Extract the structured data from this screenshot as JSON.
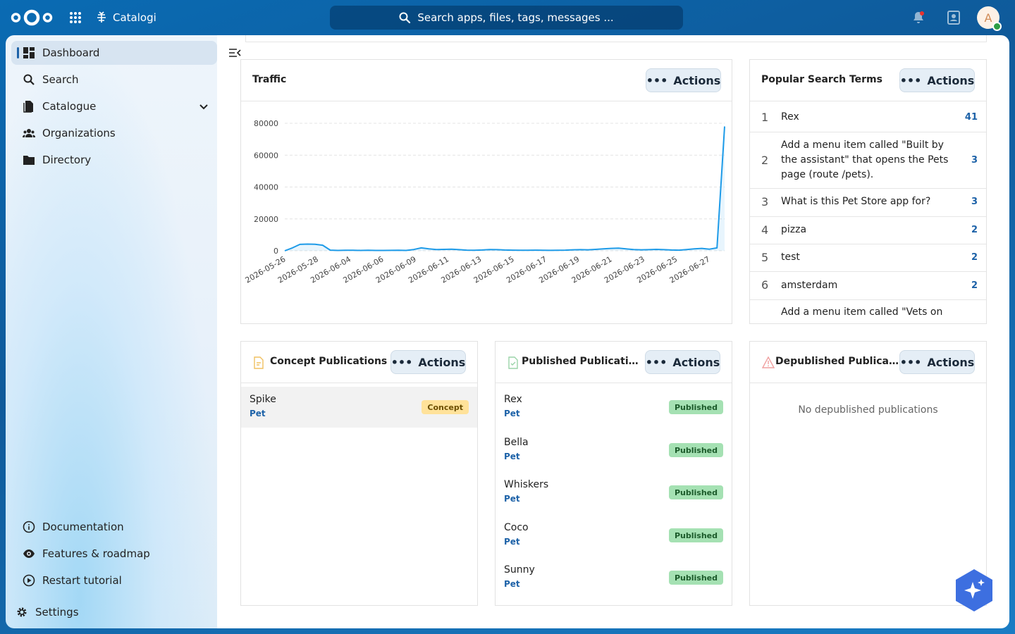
{
  "header": {
    "app_name": "Catalogi",
    "search_placeholder": "Search apps, files, tags, messages ...",
    "avatar_initial": "A"
  },
  "sidebar": {
    "items": [
      {
        "label": "Dashboard",
        "icon": "dashboard-icon"
      },
      {
        "label": "Search",
        "icon": "search-icon"
      },
      {
        "label": "Catalogue",
        "icon": "file-icon"
      },
      {
        "label": "Organizations",
        "icon": "people-icon"
      },
      {
        "label": "Directory",
        "icon": "folder-icon"
      }
    ],
    "bottom_items": [
      {
        "label": "Documentation",
        "icon": "info-icon"
      },
      {
        "label": "Features & roadmap",
        "icon": "eye-icon"
      },
      {
        "label": "Restart tutorial",
        "icon": "play-icon"
      }
    ],
    "settings_label": "Settings"
  },
  "traffic": {
    "title": "Traffic",
    "actions_label": "Actions"
  },
  "chart_data": {
    "type": "area",
    "title": "Traffic",
    "xlabel": "",
    "ylabel": "",
    "ylim": [
      0,
      80000
    ],
    "yticks": [
      0,
      20000,
      40000,
      60000,
      80000
    ],
    "xtick_labels": [
      "2026-05-26",
      "2026-05-28",
      "2026-06-04",
      "2026-06-06",
      "2026-06-09",
      "2026-06-11",
      "2026-06-13",
      "2026-06-15",
      "2026-06-17",
      "2026-06-19",
      "2026-06-21",
      "2026-06-23",
      "2026-06-25",
      "2026-06-27"
    ],
    "x": [
      0,
      1,
      2,
      3,
      4,
      5,
      6,
      7,
      8,
      9,
      10,
      11,
      12,
      13,
      14,
      15,
      16,
      17,
      18,
      19,
      20,
      21,
      22,
      23,
      24,
      25,
      26,
      27,
      28,
      29,
      30,
      31,
      32,
      33,
      34,
      35,
      36,
      37,
      38,
      39,
      40,
      41,
      42,
      43,
      44,
      45,
      46,
      47,
      48,
      49,
      50,
      51,
      52,
      53,
      54,
      55,
      56,
      57,
      58
    ],
    "values": [
      0,
      1800,
      4000,
      4200,
      4100,
      3500,
      400,
      200,
      300,
      300,
      200,
      300,
      200,
      200,
      250,
      300,
      200,
      800,
      1800,
      1200,
      800,
      900,
      1000,
      700,
      400,
      300,
      500,
      800,
      700,
      500,
      400,
      300,
      300,
      400,
      300,
      250,
      300,
      400,
      600,
      700,
      600,
      900,
      1200,
      1500,
      1700,
      1200,
      800,
      600,
      700,
      900,
      700,
      500,
      400,
      800,
      1200,
      1500,
      1000,
      1800,
      78000
    ],
    "grid": true,
    "color": "#1e9be8"
  },
  "search_terms": {
    "title": "Popular Search Terms",
    "actions_label": "Actions",
    "items": [
      {
        "rank": "1",
        "text": "Rex",
        "count": "41"
      },
      {
        "rank": "2",
        "text": "Add a menu item called \"Built by the assistant\" that opens the Pets page (route /pets).",
        "count": "3"
      },
      {
        "rank": "3",
        "text": "What is this Pet Store app for?",
        "count": "3"
      },
      {
        "rank": "4",
        "text": "pizza",
        "count": "2"
      },
      {
        "rank": "5",
        "text": "test",
        "count": "2"
      },
      {
        "rank": "6",
        "text": "amsterdam",
        "count": "2"
      },
      {
        "rank": "",
        "text": "Add a menu item called \"Vets on",
        "count": ""
      }
    ]
  },
  "concept": {
    "title": "Concept Publications",
    "actions_label": "Actions",
    "items": [
      {
        "name": "Spike",
        "type": "Pet",
        "status": "Concept"
      }
    ]
  },
  "published": {
    "title": "Published Publications",
    "actions_label": "Actions",
    "items": [
      {
        "name": "Rex",
        "type": "Pet",
        "status": "Published"
      },
      {
        "name": "Bella",
        "type": "Pet",
        "status": "Published"
      },
      {
        "name": "Whiskers",
        "type": "Pet",
        "status": "Published"
      },
      {
        "name": "Coco",
        "type": "Pet",
        "status": "Published"
      },
      {
        "name": "Sunny",
        "type": "Pet",
        "status": "Published"
      }
    ]
  },
  "depublished": {
    "title": "Depublished Publications",
    "actions_label": "Actions",
    "empty_text": "No depublished publications"
  },
  "colors": {
    "brand": "#0f5a9a",
    "link": "#1d62a8",
    "chart_line": "#1e9be8"
  }
}
